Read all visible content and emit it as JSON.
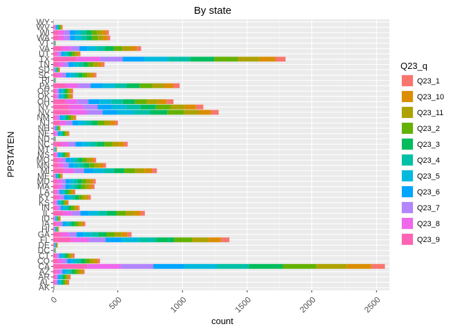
{
  "chart_data": {
    "type": "bar",
    "orientation": "horizontal",
    "stacked": true,
    "title": "By state",
    "xlabel": "count",
    "ylabel": "PPSTATEN",
    "xlim": [
      0,
      2600
    ],
    "x_ticks": [
      0,
      500,
      1000,
      1500,
      2000,
      2500
    ],
    "x_tick_labels": [
      "0",
      "500",
      "1000",
      "1500",
      "2000",
      "2500"
    ],
    "grid": true,
    "legend": {
      "title": "Q23_q",
      "position": "right"
    },
    "categories": [
      "AK",
      "AL",
      "AR",
      "AZ",
      "CA",
      "CO",
      "CT",
      "DC",
      "DE",
      "FL",
      "GA",
      "HI",
      "IA",
      "ID",
      "IL",
      "IN",
      "KS",
      "KY",
      "LA",
      "MA",
      "MD",
      "ME",
      "MI",
      "MN",
      "MO",
      "MS",
      "MT",
      "NC",
      "ND",
      "NE",
      "NH",
      "NJ",
      "NM",
      "NV",
      "NY",
      "OH",
      "OK",
      "OR",
      "PA",
      "RI",
      "SC",
      "SD",
      "TN",
      "TX",
      "UT",
      "VA",
      "VT",
      "WA",
      "WI",
      "WV",
      "WY"
    ],
    "series": [
      {
        "name": "Q23_1",
        "color": "#F8766D",
        "values": [
          1,
          9,
          10,
          11,
          105,
          16,
          13,
          2,
          3,
          64,
          33,
          3,
          14,
          4,
          34,
          11,
          7,
          15,
          11,
          18,
          18,
          5,
          38,
          22,
          17,
          7,
          2,
          27,
          1,
          7,
          3,
          23,
          9,
          58,
          57,
          53,
          9,
          10,
          49,
          2,
          18,
          4,
          19,
          78,
          11,
          33,
          1,
          20,
          20,
          4,
          0.3
        ]
      },
      {
        "name": "Q23_10",
        "color": "#DB8E00",
        "values": [
          1,
          11,
          12,
          18,
          187,
          27,
          13,
          2,
          3,
          99,
          43,
          3,
          18,
          4,
          49,
          14,
          8,
          21,
          13,
          23,
          25,
          6,
          58,
          30,
          24,
          10,
          2,
          41,
          2,
          10,
          4,
          37,
          13,
          92,
          86,
          67,
          11,
          12,
          72,
          2,
          24,
          4,
          30,
          124,
          15,
          49,
          2,
          32,
          31,
          6,
          0.4
        ]
      },
      {
        "name": "Q23_11",
        "color": "#AEA200",
        "values": [
          1,
          11,
          12,
          22,
          238,
          33,
          15,
          2,
          3,
          126,
          55,
          4,
          23,
          5,
          65,
          19,
          11,
          27,
          16,
          30,
          30,
          7,
          74,
          37,
          30,
          11,
          2,
          54,
          2,
          11,
          5,
          46,
          16,
          118,
          107,
          85,
          14,
          14,
          90,
          2,
          31,
          5,
          37,
          167,
          19,
          63,
          2,
          41,
          40,
          7,
          0.4
        ]
      },
      {
        "name": "Q23_2",
        "color": "#64B200",
        "values": [
          1,
          12,
          13,
          24,
          260,
          36,
          16,
          2,
          3,
          138,
          61,
          4,
          25,
          6,
          72,
          21,
          12,
          29,
          17,
          32,
          33,
          7,
          81,
          41,
          33,
          13,
          3,
          58,
          2,
          12,
          6,
          50,
          18,
          129,
          117,
          93,
          15,
          15,
          99,
          2,
          34,
          5,
          40,
          183,
          21,
          68,
          2,
          45,
          44,
          7,
          0.4
        ]
      },
      {
        "name": "Q23_3",
        "color": "#00BD5C",
        "values": [
          1,
          12,
          13,
          25,
          263,
          37,
          16,
          2,
          4,
          140,
          62,
          5,
          25,
          6,
          73,
          21,
          12,
          30,
          17,
          33,
          33,
          7,
          82,
          41,
          34,
          13,
          3,
          59,
          2,
          13,
          6,
          51,
          18,
          132,
          119,
          94,
          16,
          16,
          100,
          2,
          34,
          5,
          40,
          186,
          22,
          70,
          2,
          45,
          44,
          7,
          0.4
        ]
      },
      {
        "name": "Q23_4",
        "color": "#00C1A7",
        "values": [
          1,
          11,
          12,
          24,
          244,
          34,
          15,
          2,
          3,
          130,
          57,
          4,
          23,
          5,
          68,
          19,
          11,
          28,
          16,
          30,
          31,
          7,
          76,
          39,
          31,
          12,
          3,
          55,
          2,
          12,
          5,
          48,
          17,
          123,
          110,
          88,
          14,
          14,
          93,
          2,
          31,
          5,
          37,
          172,
          20,
          65,
          2,
          42,
          41,
          7,
          0.4
        ]
      },
      {
        "name": "Q23_5",
        "color": "#00BADE",
        "values": [
          1,
          12,
          13,
          25,
          254,
          36,
          16,
          2,
          3,
          134,
          59,
          4,
          24,
          6,
          71,
          20,
          12,
          29,
          16,
          31,
          32,
          7,
          80,
          40,
          33,
          13,
          3,
          57,
          2,
          12,
          6,
          50,
          18,
          127,
          114,
          91,
          15,
          15,
          96,
          2,
          33,
          5,
          39,
          180,
          21,
          67,
          2,
          44,
          43,
          7,
          0.4
        ]
      },
      {
        "name": "Q23_6",
        "color": "#00A6FF",
        "values": [
          1,
          11,
          12,
          22,
          240,
          34,
          15,
          2,
          3,
          127,
          56,
          4,
          23,
          5,
          66,
          19,
          11,
          27,
          15,
          29,
          30,
          6,
          75,
          38,
          31,
          12,
          3,
          53,
          2,
          11,
          5,
          47,
          16,
          119,
          107,
          86,
          14,
          14,
          90,
          2,
          31,
          5,
          37,
          170,
          20,
          63,
          2,
          41,
          40,
          7,
          0.4
        ]
      },
      {
        "name": "Q23_7",
        "color": "#B385FF",
        "values": [
          1,
          11,
          12,
          23,
          250,
          35,
          15,
          2,
          3,
          130,
          58,
          4,
          24,
          5,
          68,
          19,
          11,
          27,
          16,
          30,
          31,
          7,
          77,
          39,
          32,
          12,
          3,
          55,
          2,
          12,
          5,
          48,
          17,
          122,
          110,
          88,
          14,
          14,
          93,
          2,
          32,
          5,
          38,
          173,
          20,
          65,
          2,
          42,
          41,
          7,
          0.4
        ]
      },
      {
        "name": "Q23_8",
        "color": "#EF67EB",
        "values": [
          1,
          12,
          13,
          24,
          262,
          37,
          16,
          2,
          4,
          137,
          61,
          5,
          25,
          6,
          71,
          20,
          12,
          29,
          17,
          32,
          33,
          7,
          80,
          41,
          33,
          13,
          3,
          58,
          2,
          12,
          6,
          50,
          18,
          128,
          116,
          92,
          15,
          15,
          97,
          2,
          33,
          5,
          40,
          181,
          21,
          68,
          2,
          44,
          43,
          7,
          0.4
        ]
      },
      {
        "name": "Q23_9",
        "color": "#FF63B6",
        "values": [
          1,
          12,
          13,
          25,
          262,
          37,
          16,
          2,
          4,
          138,
          61,
          5,
          25,
          6,
          72,
          21,
          12,
          29,
          17,
          32,
          33,
          7,
          81,
          41,
          34,
          13,
          3,
          59,
          2,
          13,
          6,
          51,
          18,
          131,
          118,
          93,
          16,
          16,
          99,
          2,
          34,
          5,
          40,
          183,
          21,
          69,
          2,
          45,
          44,
          7,
          0.4
        ]
      }
    ]
  }
}
